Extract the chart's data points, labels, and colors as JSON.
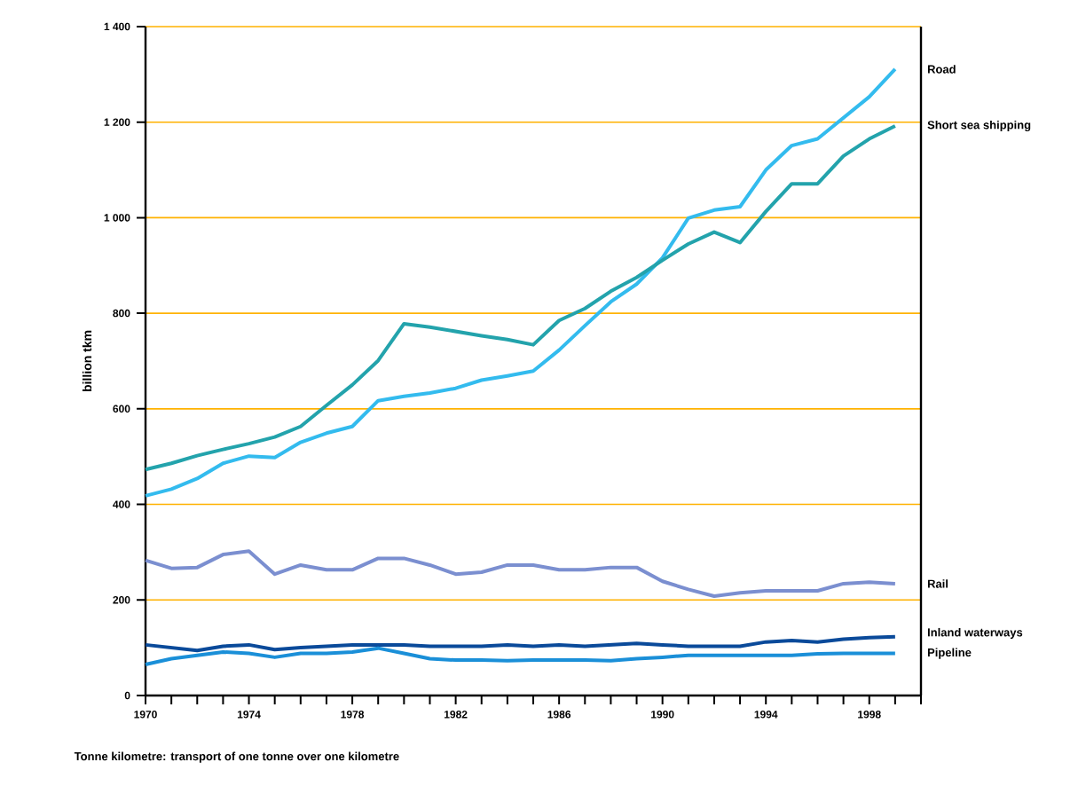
{
  "chart_data": {
    "type": "line",
    "ylabel": "billion tkm",
    "annotations": [
      "Tonne kilometre: transport of one tonne over one kilometre"
    ],
    "x": [
      1970,
      1971,
      1972,
      1973,
      1974,
      1975,
      1976,
      1977,
      1978,
      1979,
      1980,
      1981,
      1982,
      1983,
      1984,
      1985,
      1986,
      1987,
      1988,
      1989,
      1990,
      1991,
      1992,
      1993,
      1994,
      1995,
      1996,
      1997,
      1998,
      1999
    ],
    "series": [
      {
        "name": "Road",
        "color": "#33bbee",
        "values": [
          418,
          432,
          454,
          486,
          501,
          498,
          530,
          549,
          563,
          617,
          626,
          633,
          643,
          660,
          669,
          679,
          723,
          774,
          824,
          861,
          916,
          999,
          1016,
          1023,
          1100,
          1151,
          1165,
          1209,
          1253,
          1311
        ]
      },
      {
        "name": "Short sea shipping",
        "color": "#23a3ac",
        "values": [
          473,
          486,
          502,
          515,
          527,
          541,
          563,
          607,
          650,
          701,
          778,
          771,
          762,
          753,
          745,
          734,
          785,
          810,
          846,
          875,
          911,
          945,
          970,
          948,
          1013,
          1071,
          1071,
          1129,
          1165,
          1192
        ]
      },
      {
        "name": "Rail",
        "color": "#7b8fd0",
        "values": [
          283,
          266,
          268,
          295,
          302,
          254,
          273,
          263,
          263,
          287,
          287,
          273,
          254,
          258,
          273,
          273,
          263,
          263,
          268,
          268,
          239,
          222,
          208,
          215,
          219,
          219,
          219,
          234,
          237,
          234
        ]
      },
      {
        "name": "Inland waterways",
        "color": "#0a4a9a",
        "values": [
          106,
          100,
          94,
          103,
          106,
          96,
          100,
          103,
          106,
          106,
          106,
          103,
          103,
          103,
          106,
          103,
          106,
          103,
          106,
          109,
          106,
          103,
          103,
          103,
          112,
          115,
          112,
          118,
          121,
          123
        ]
      },
      {
        "name": "Pipeline",
        "color": "#1a8fd8",
        "values": [
          65,
          77,
          84,
          91,
          88,
          80,
          88,
          88,
          91,
          99,
          88,
          77,
          74,
          74,
          73,
          74,
          74,
          74,
          73,
          77,
          80,
          84,
          84,
          84,
          84,
          84,
          87,
          88,
          88,
          88
        ]
      }
    ],
    "xlim": [
      1970,
      2000
    ],
    "xticks": [
      1970,
      {
        "value": 1971,
        "label": null
      },
      {
        "value": 1972,
        "label": null
      },
      {
        "value": 1973,
        "label": null
      },
      1974,
      {
        "value": 1975,
        "label": null
      },
      {
        "value": 1976,
        "label": null
      },
      {
        "value": 1977,
        "label": null
      },
      1978,
      {
        "value": 1979,
        "label": null
      },
      {
        "value": 1980,
        "label": null
      },
      {
        "value": 1981,
        "label": null
      },
      1982,
      {
        "value": 1983,
        "label": null
      },
      {
        "value": 1984,
        "label": null
      },
      {
        "value": 1985,
        "label": null
      },
      1986,
      {
        "value": 1987,
        "label": null
      },
      {
        "value": 1988,
        "label": null
      },
      {
        "value": 1989,
        "label": null
      },
      1990,
      {
        "value": 1991,
        "label": null
      },
      {
        "value": 1992,
        "label": null
      },
      {
        "value": 1993,
        "label": null
      },
      1994,
      {
        "value": 1995,
        "label": null
      },
      {
        "value": 1996,
        "label": null
      },
      {
        "value": 1997,
        "label": null
      },
      1998,
      {
        "value": 1999,
        "label": null
      },
      {
        "value": 2000,
        "label": null
      }
    ],
    "ylim": [
      0,
      1400
    ],
    "yticks": [
      0,
      200,
      400,
      600,
      800,
      {
        "value": 1000,
        "label": "1 000"
      },
      {
        "value": 1200,
        "label": "1 200"
      },
      {
        "value": 1400,
        "label": "1 400"
      }
    ],
    "grid": "y",
    "marker": "none",
    "line_style": "solid"
  }
}
